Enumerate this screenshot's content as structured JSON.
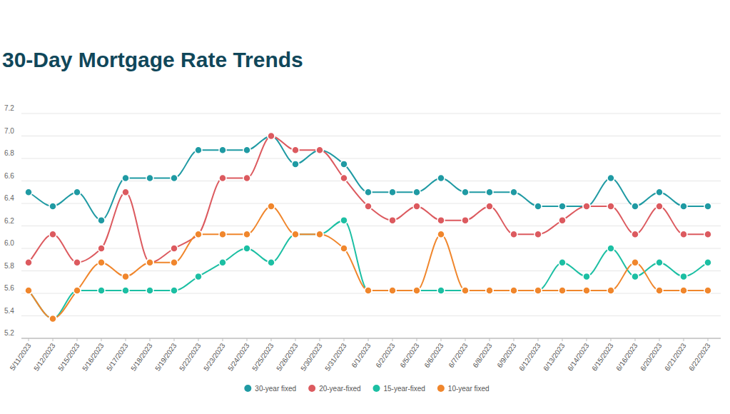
{
  "chart_data": {
    "type": "line",
    "title": "30-Day Mortgage Rate Trends",
    "categories": [
      "5/11/2023",
      "5/12/2023",
      "5/15/2023",
      "5/16/2023",
      "5/17/2023",
      "5/18/2023",
      "5/19/2023",
      "5/22/2023",
      "5/23/2023",
      "5/24/2023",
      "5/25/2023",
      "5/26/2023",
      "5/30/2023",
      "5/31/2023",
      "6/1/2023",
      "6/2/2023",
      "6/5/2023",
      "6/6/2023",
      "6/7/2023",
      "6/8/2023",
      "6/9/2023",
      "6/12/2023",
      "6/13/2023",
      "6/14/2023",
      "6/15/2023",
      "6/16/2023",
      "6/20/2023",
      "6/21/2023",
      "6/22/2023"
    ],
    "series": [
      {
        "name": "30-year fixed",
        "color": "#1f9aa3",
        "values": [
          6.5,
          6.375,
          6.5,
          6.25,
          6.625,
          6.625,
          6.625,
          6.875,
          6.875,
          6.875,
          7.0,
          6.75,
          6.875,
          6.75,
          6.5,
          6.5,
          6.5,
          6.625,
          6.5,
          6.5,
          6.5,
          6.375,
          6.375,
          6.375,
          6.625,
          6.375,
          6.5,
          6.375,
          6.375
        ]
      },
      {
        "name": "20-year-fixed",
        "color": "#dc5a5f",
        "values": [
          5.875,
          6.125,
          5.875,
          6.0,
          6.5,
          5.875,
          6.0,
          6.125,
          6.625,
          6.625,
          7.0,
          6.875,
          6.875,
          6.625,
          6.375,
          6.25,
          6.375,
          6.25,
          6.25,
          6.375,
          6.125,
          6.125,
          6.25,
          6.375,
          6.375,
          6.125,
          6.375,
          6.125,
          6.125
        ]
      },
      {
        "name": "15-year-fixed",
        "color": "#1cbfa3",
        "values": [
          5.625,
          5.375,
          5.625,
          5.625,
          5.625,
          5.625,
          5.625,
          5.75,
          5.875,
          6.0,
          5.875,
          6.125,
          6.125,
          6.25,
          5.625,
          5.625,
          5.625,
          5.625,
          5.625,
          5.625,
          5.625,
          5.625,
          5.875,
          5.75,
          6.0,
          5.75,
          5.875,
          5.75,
          5.875
        ]
      },
      {
        "name": "10-year fixed",
        "color": "#f0862c",
        "values": [
          5.625,
          5.375,
          5.625,
          5.875,
          5.75,
          5.875,
          5.875,
          6.125,
          6.125,
          6.125,
          6.375,
          6.125,
          6.125,
          6.0,
          5.625,
          5.625,
          5.625,
          6.125,
          5.625,
          5.625,
          5.625,
          5.625,
          5.625,
          5.625,
          5.625,
          5.875,
          5.625,
          5.625,
          5.625
        ]
      }
    ],
    "ylim": [
      5.2,
      7.2
    ],
    "yticks": [
      5.2,
      5.4,
      5.6,
      5.8,
      {
        "value": 6,
        "label": "6.0"
      },
      6.2,
      6.4,
      6.6,
      6.8,
      {
        "value": 7,
        "label": "7.0"
      },
      7.2
    ],
    "grid": true,
    "legend": "bottom",
    "marker": "circle",
    "line_style": "solid"
  }
}
